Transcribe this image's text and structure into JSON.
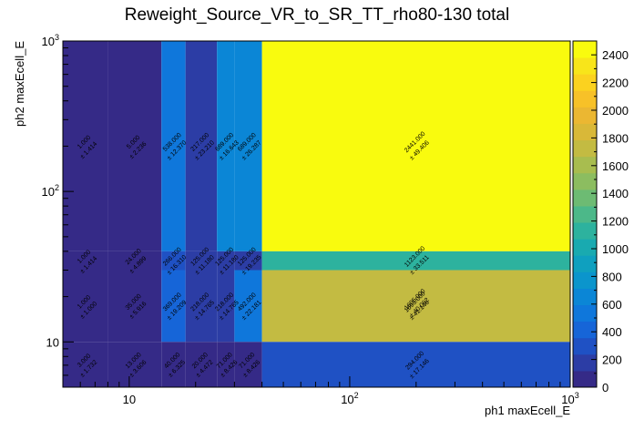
{
  "chart_data": {
    "type": "heatmap",
    "title": "Reweight_Source_VR_to_SR_TT_rho80-130 total",
    "xlabel": "ph1 maxEcell_E",
    "ylabel": "ph2 maxEcell_E",
    "x_scale": "log",
    "y_scale": "log",
    "xlim": [
      5,
      1000
    ],
    "ylim": [
      5,
      1000
    ],
    "x_ticks": [
      {
        "value": 10,
        "label": "10"
      },
      {
        "value": 100,
        "label": "10^2"
      },
      {
        "value": 1000,
        "label": "10^3"
      }
    ],
    "y_ticks": [
      {
        "value": 10,
        "label": "10"
      },
      {
        "value": 100,
        "label": "10^2"
      },
      {
        "value": 1000,
        "label": "10^3"
      }
    ],
    "x_edges": [
      5,
      8,
      14,
      18,
      25,
      30,
      40,
      1000
    ],
    "y_edges": [
      5,
      10,
      30,
      40,
      1000
    ],
    "z_min": 0,
    "z_max": 2500,
    "colorbar_ticks": [
      0,
      200,
      400,
      600,
      800,
      1000,
      1200,
      1400,
      1600,
      1800,
      2000,
      2200,
      2400
    ],
    "colorbar_colors": [
      "#352a87",
      "#2c3da5",
      "#1f51c4",
      "#1665d8",
      "#0f77db",
      "#0b86d6",
      "#0b95cc",
      "#0fa0bf",
      "#19aab0",
      "#2db29e",
      "#4cb889",
      "#6dbb73",
      "#8cbd60",
      "#a8bd4f",
      "#c3bb42",
      "#d9b838",
      "#ebb732",
      "#f7c128",
      "#fbd21f",
      "#f8e51a",
      "#f9fb0e"
    ],
    "cells": [
      {
        "col": 0,
        "row": 3,
        "value": 1.0,
        "label": "1.000",
        "error": "± 1.414"
      },
      {
        "col": 1,
        "row": 3,
        "value": 5.0,
        "label": "5.000",
        "error": "± 2.236"
      },
      {
        "col": 2,
        "row": 3,
        "value": 538.0,
        "label": "538.000",
        "error": "± 12.370"
      },
      {
        "col": 3,
        "row": 3,
        "value": 217.0,
        "label": "217.000",
        "error": "± 23.210"
      },
      {
        "col": 4,
        "row": 3,
        "value": 689.0,
        "label": "689.000",
        "error": "± 16.643"
      },
      {
        "col": 5,
        "row": 3,
        "value": 689.0,
        "label": "689.000",
        "error": "± 26.287"
      },
      {
        "col": 6,
        "row": 3,
        "value": 2441.0,
        "label": "2441.000",
        "error": "± 49.406"
      },
      {
        "col": 0,
        "row": 2,
        "value": 1.0,
        "label": "1.000",
        "error": "± 1.414"
      },
      {
        "col": 1,
        "row": 2,
        "value": 24.0,
        "label": "24.000",
        "error": "± 4.899"
      },
      {
        "col": 2,
        "row": 2,
        "value": 266.0,
        "label": "266.000",
        "error": "± 16.310"
      },
      {
        "col": 3,
        "row": 2,
        "value": 125.0,
        "label": "125.000",
        "error": "± 11.180"
      },
      {
        "col": 4,
        "row": 2,
        "value": 125.0,
        "label": "125.000",
        "error": "± 11.180"
      },
      {
        "col": 5,
        "row": 2,
        "value": 125.0,
        "label": "125.000",
        "error": "± 19.235"
      },
      {
        "col": 6,
        "row": 2,
        "value": 1123.0,
        "label": "1123.000",
        "error": "± 33.511"
      },
      {
        "col": 0,
        "row": 1,
        "value": 1.0,
        "label": "1.000",
        "error": "± 1.000"
      },
      {
        "col": 1,
        "row": 1,
        "value": 35.0,
        "label": "35.000",
        "error": "± 5.916"
      },
      {
        "col": 2,
        "row": 1,
        "value": 369.0,
        "label": "369.000",
        "error": "± 19.209"
      },
      {
        "col": 3,
        "row": 1,
        "value": 218.0,
        "label": "218.000",
        "error": "± 14.765"
      },
      {
        "col": 4,
        "row": 1,
        "value": 218.0,
        "label": "218.000",
        "error": "± 14.765"
      },
      {
        "col": 5,
        "row": 1,
        "value": 492.0,
        "label": "492.000",
        "error": "± 22.181"
      },
      {
        "col": 6,
        "row": 1,
        "value": 1693.0,
        "label": "1693.000",
        "error": "± 41.146"
      },
      {
        "col": 0,
        "row": 0,
        "value": 3.0,
        "label": "3.000",
        "error": "± 1.732"
      },
      {
        "col": 1,
        "row": 0,
        "value": 13.0,
        "label": "13.000",
        "error": "± 3.606"
      },
      {
        "col": 2,
        "row": 0,
        "value": 40.0,
        "label": "40.000",
        "error": "± 6.325"
      },
      {
        "col": 3,
        "row": 0,
        "value": 20.0,
        "label": "20.000",
        "error": "± 4.472"
      },
      {
        "col": 4,
        "row": 0,
        "value": 71.0,
        "label": "71.000",
        "error": "± 8.426"
      },
      {
        "col": 5,
        "row": 0,
        "value": 71.0,
        "label": "71.000",
        "error": "± 8.426"
      },
      {
        "col": 6,
        "row": 0,
        "value": 294.0,
        "label": "294.000",
        "error": "± 17.146"
      },
      {
        "col": 6,
        "row": 0.5,
        "value": 1605.0,
        "label": "1605.000",
        "error": "± 40.062"
      }
    ]
  }
}
